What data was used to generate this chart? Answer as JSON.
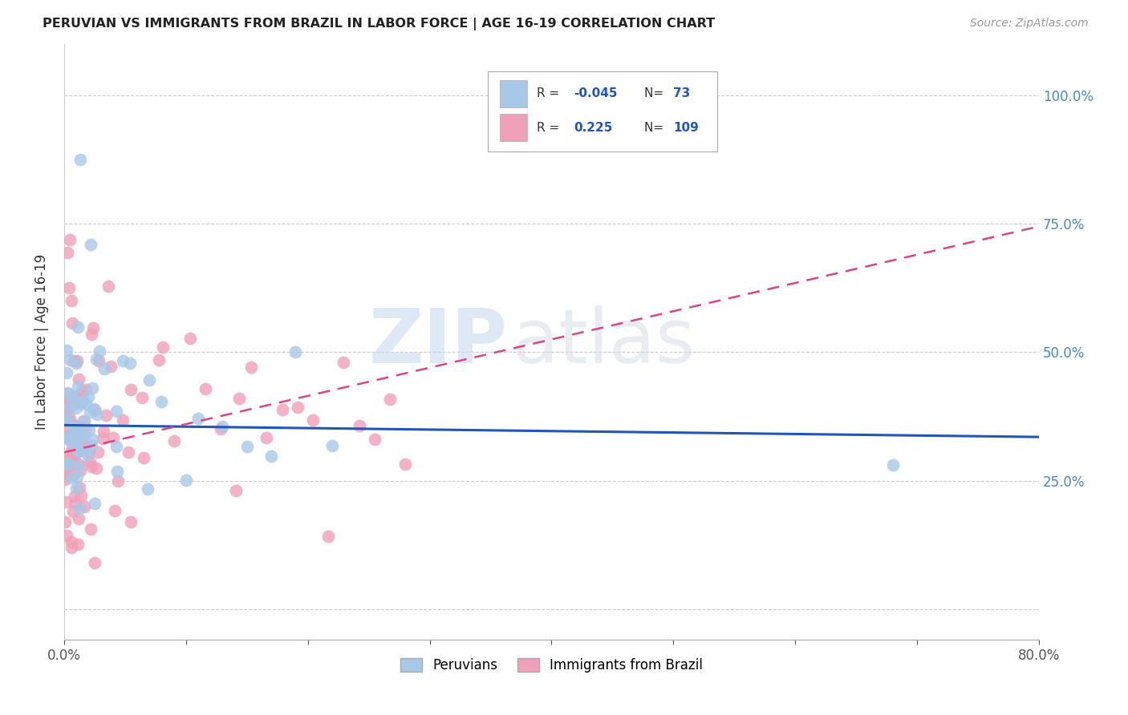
{
  "title": "PERUVIAN VS IMMIGRANTS FROM BRAZIL IN LABOR FORCE | AGE 16-19 CORRELATION CHART",
  "source": "Source: ZipAtlas.com",
  "ylabel": "In Labor Force | Age 16-19",
  "legend_label1": "Peruvians",
  "legend_label2": "Immigrants from Brazil",
  "watermark_zip": "ZIP",
  "watermark_atlas": "atlas",
  "blue_color": "#a8c8e8",
  "pink_color": "#f0a0b8",
  "blue_line_color": "#2255bb",
  "pink_line_color": "#dd4488",
  "background_color": "#ffffff",
  "grid_color": "#cccccc",
  "right_axis_color": "#4488cc",
  "xmin": 0.0,
  "xmax": 0.8,
  "ymin": -0.06,
  "ymax": 1.1,
  "blue_line_x0": 0.0,
  "blue_line_y0": 0.358,
  "blue_line_x1": 0.8,
  "blue_line_y1": 0.335,
  "pink_line_x0": 0.0,
  "pink_line_y0": 0.305,
  "pink_line_x1": 0.8,
  "pink_line_y1": 0.745,
  "n_blue": 73,
  "n_pink": 109,
  "r_blue": -0.045,
  "r_pink": 0.225
}
